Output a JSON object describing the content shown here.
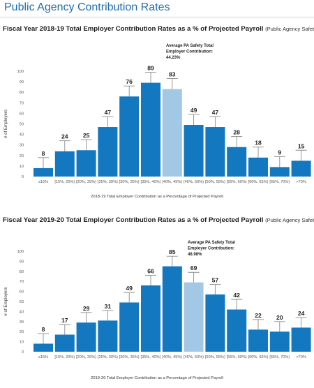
{
  "page_title": "Public Agency Contribution Rates",
  "charts": [
    {
      "title": "Fiscal Year 2018-19 Total Employer Contribution Rates as a % of Projected Payroll",
      "subtitle": "(Public Agency Safety)",
      "annotation": [
        "Average PA Safety Total",
        "Employer Contribution:",
        "44.23%"
      ]
    },
    {
      "title": "Fiscal Year 2019-20 Total Employer Contribution Rates as a % of Projected Payroll",
      "subtitle": "(Public Agency Safety)",
      "annotation": [
        "Average PA Safety Total",
        "Employer Contribution:",
        "48.98%"
      ]
    }
  ],
  "colors": {
    "bar": "#1478c0",
    "highlight": "#a3c8e6",
    "errorbar": "#8a8a8a",
    "title": "#1f6db3"
  },
  "chart_data": [
    {
      "type": "bar",
      "title": "Fiscal Year 2018-19 Total Employer Contribution Rates as a % of Projected Payroll",
      "categories": [
        "≤15%",
        "[15%, 20%)",
        "[20%, 25%)",
        "[25%, 30%)",
        "[30%, 35%)",
        "[35%, 40%)",
        "[40%, 45%)",
        "[45%, 50%)",
        "[50%, 55%)",
        "[55%, 60%)",
        "[60%, 65%)",
        "[65%, 70%)",
        ">70%"
      ],
      "values": [
        8,
        24,
        25,
        47,
        76,
        89,
        83,
        49,
        47,
        28,
        18,
        9,
        15
      ],
      "highlight_index": 6,
      "error_high": [
        18,
        34,
        35,
        57,
        86,
        99,
        93,
        59,
        57,
        38,
        28,
        19,
        25
      ],
      "xlabel": "2018-19 Total Employer Contribution as a Percentage of Projected Payroll",
      "ylabel": "# of Employers",
      "ylim": [
        0,
        100
      ],
      "yticks": [
        0,
        10,
        20,
        30,
        40,
        50,
        60,
        70,
        80,
        90,
        100
      ],
      "grid": false
    },
    {
      "type": "bar",
      "title": "Fiscal Year 2019-20 Total Employer Contribution Rates as a % of Projected Payroll",
      "categories": [
        "≤15%",
        "[15%, 20%)",
        "[20%, 25%)",
        "[25%, 30%)",
        "[30%, 35%)",
        "[35%, 40%)",
        "[40%, 45%)",
        "[45%, 50%)",
        "[50%, 55%)",
        "[55%, 60%)",
        "[60%, 65%)",
        "[65%, 70%)",
        ">70%"
      ],
      "values": [
        8,
        17,
        29,
        31,
        49,
        66,
        85,
        69,
        57,
        42,
        22,
        20,
        24
      ],
      "highlight_index": 7,
      "error_high": [
        18,
        27,
        39,
        41,
        59,
        76,
        95,
        79,
        67,
        52,
        32,
        30,
        34
      ],
      "xlabel": "2019-20 Total Employer Contribution as a Percentage of Projected Payroll",
      "ylabel": "# of Employers",
      "ylim": [
        0,
        100
      ],
      "yticks": [
        0,
        10,
        20,
        30,
        40,
        50,
        60,
        70,
        80,
        90,
        100
      ],
      "grid": false
    }
  ]
}
